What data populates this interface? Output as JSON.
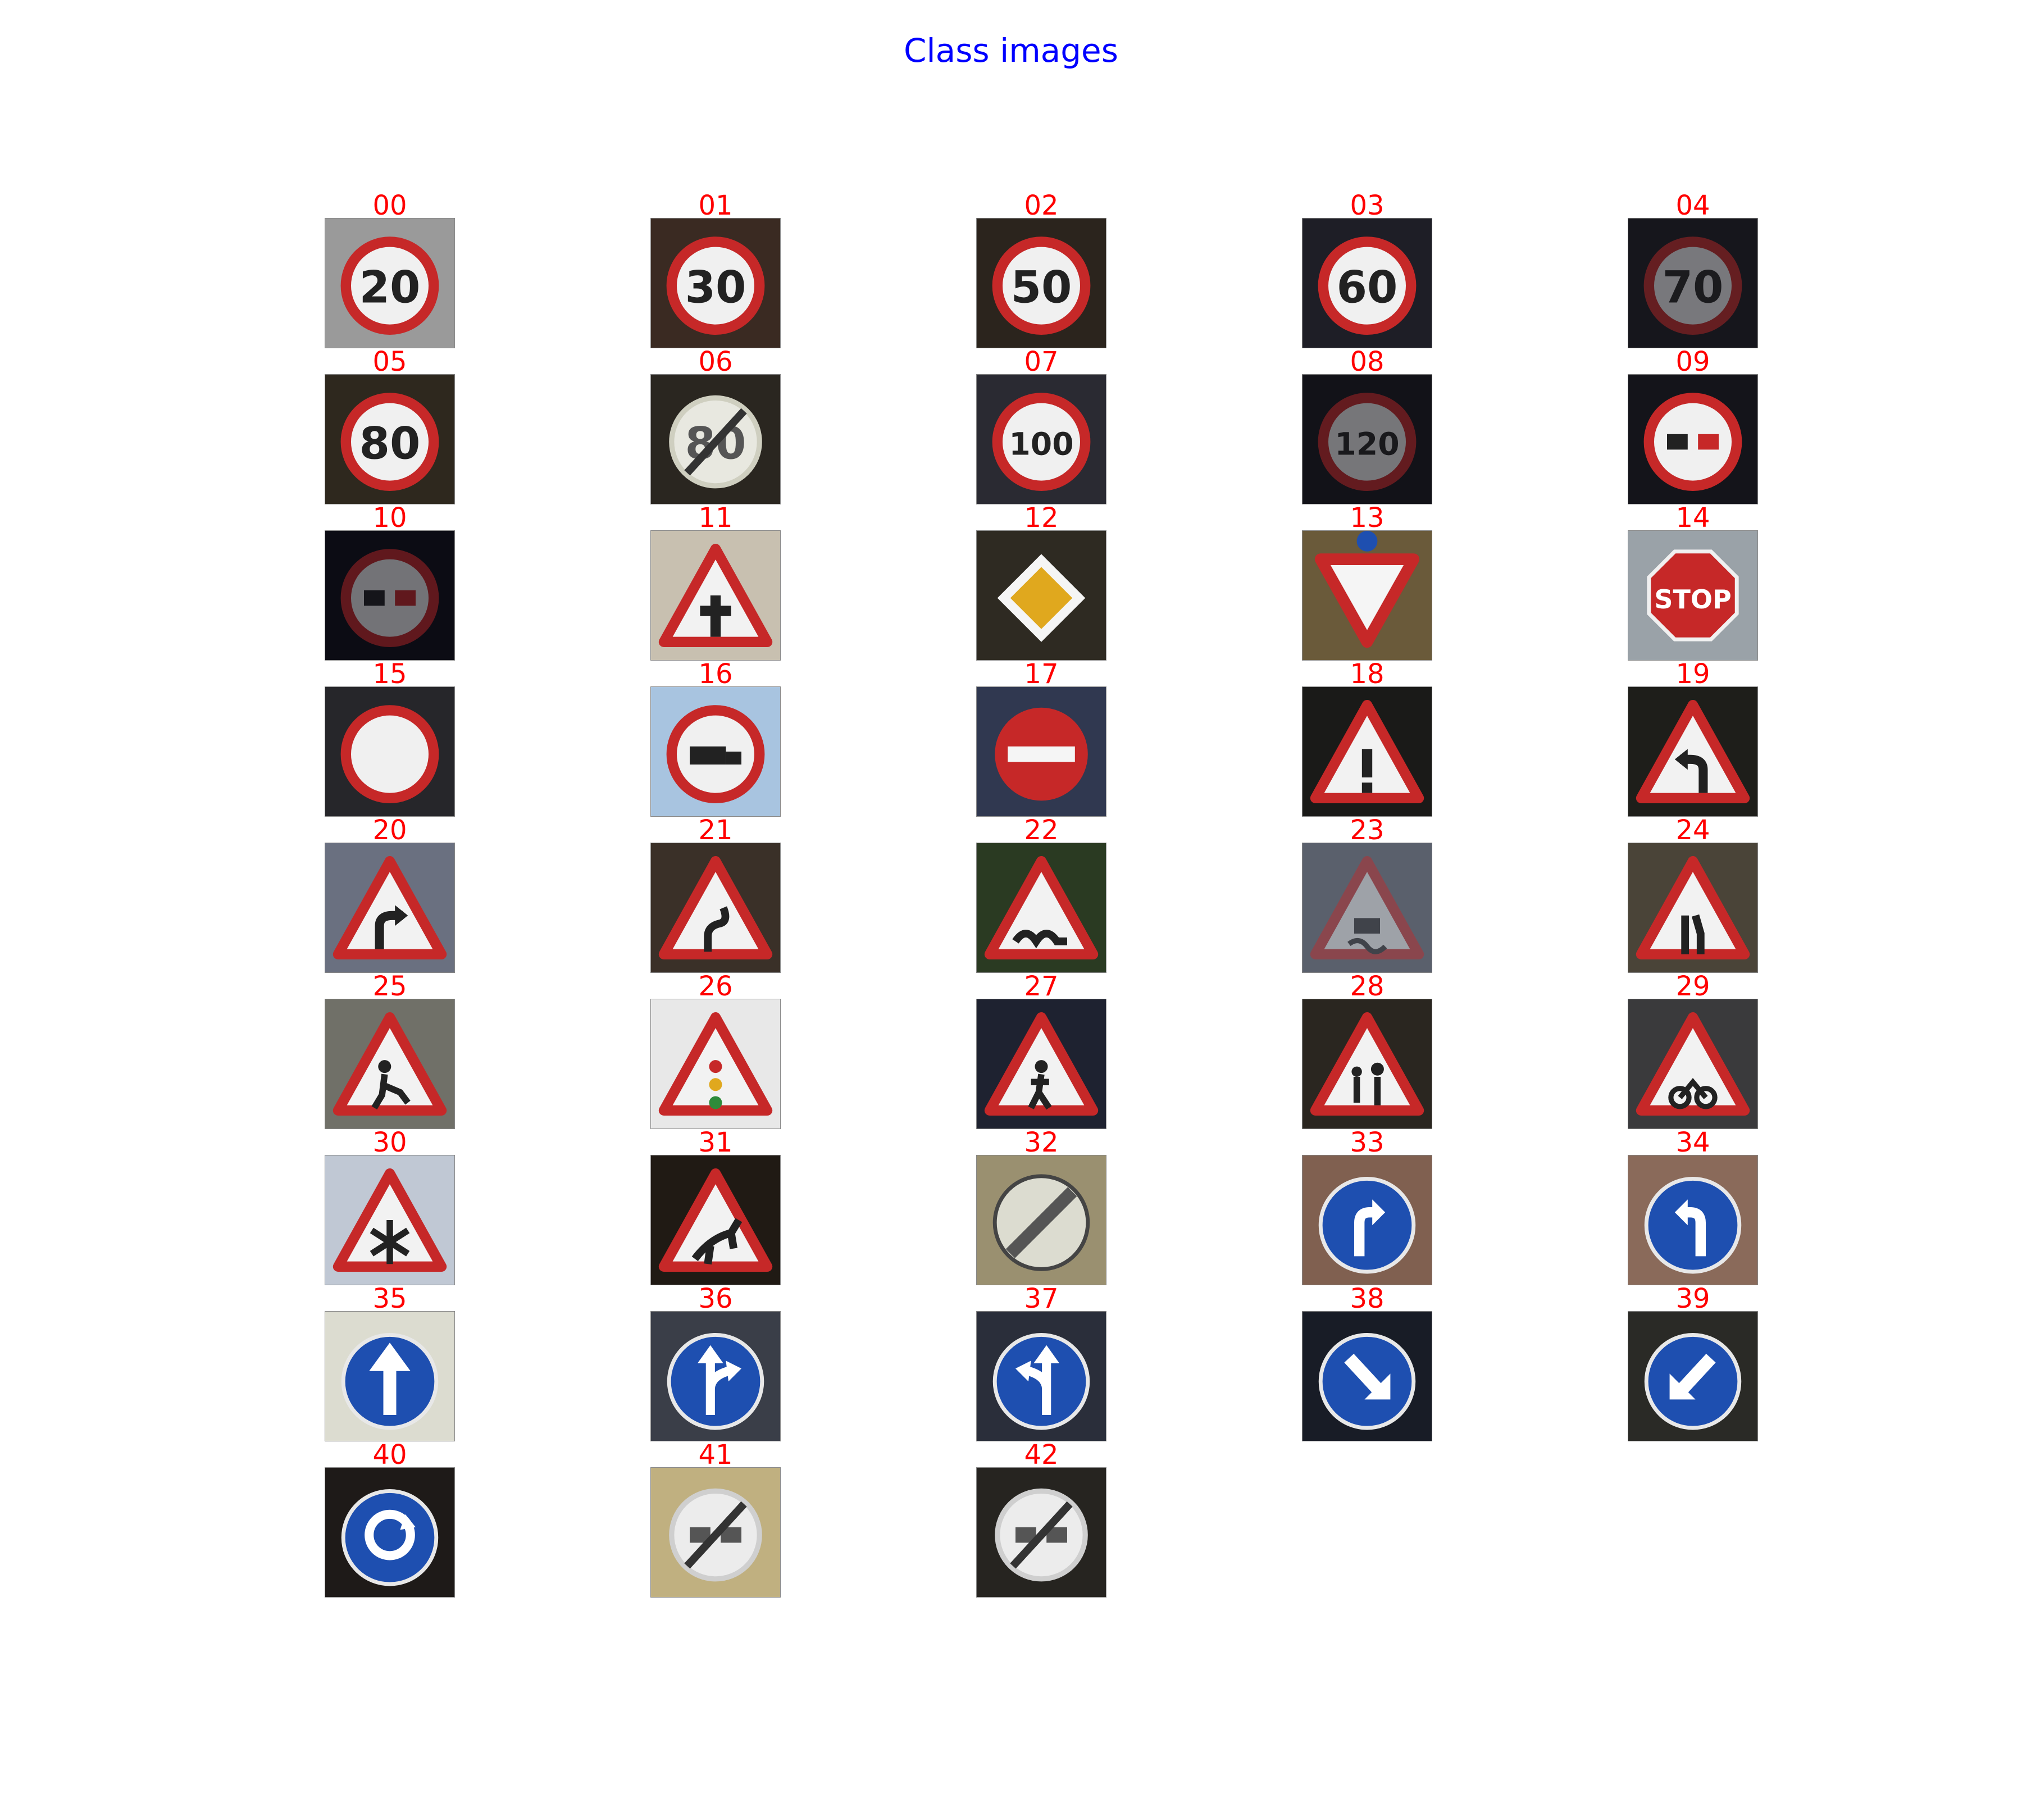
{
  "title": "Class images",
  "colors": {
    "title": "#0000ff",
    "label": "#ff0000",
    "sign_red": "#c62828",
    "sign_blue": "#1e4fb0",
    "sign_yellow": "#e0a81e"
  },
  "classes": [
    {
      "label": "00",
      "kind": "speed",
      "text": "20",
      "bg": "#9a9a9a"
    },
    {
      "label": "01",
      "kind": "speed",
      "text": "30",
      "bg": "#3a2a22"
    },
    {
      "label": "02",
      "kind": "speed",
      "text": "50",
      "bg": "#2b241d"
    },
    {
      "label": "03",
      "kind": "speed",
      "text": "60",
      "bg": "#1e1e26"
    },
    {
      "label": "04",
      "kind": "speed",
      "text": "70",
      "bg": "#16161c",
      "dark": true
    },
    {
      "label": "05",
      "kind": "speed",
      "text": "80",
      "bg": "#2e281e"
    },
    {
      "label": "06",
      "kind": "end-speed",
      "text": "80",
      "bg": "#2a2620"
    },
    {
      "label": "07",
      "kind": "speed",
      "text": "100",
      "bg": "#2a2a32"
    },
    {
      "label": "08",
      "kind": "speed",
      "text": "120",
      "bg": "#121218",
      "dark": true
    },
    {
      "label": "09",
      "kind": "no-passing",
      "bg": "#14141a"
    },
    {
      "label": "10",
      "kind": "no-passing-trucks",
      "bg": "#0c0c14",
      "dark": true
    },
    {
      "label": "11",
      "kind": "triangle",
      "symbol": "crossroad",
      "bg": "#c8c0b0"
    },
    {
      "label": "12",
      "kind": "priority-road",
      "bg": "#2e2a22"
    },
    {
      "label": "13",
      "kind": "yield",
      "bg": "#6a5a3a"
    },
    {
      "label": "14",
      "kind": "stop",
      "text": "STOP",
      "bg": "#9aa2a8"
    },
    {
      "label": "15",
      "kind": "no-vehicles",
      "bg": "#26262a"
    },
    {
      "label": "16",
      "kind": "no-trucks",
      "bg": "#a8c4e0"
    },
    {
      "label": "17",
      "kind": "no-entry",
      "bg": "#303850"
    },
    {
      "label": "18",
      "kind": "triangle",
      "symbol": "exclamation",
      "bg": "#1a1a18"
    },
    {
      "label": "19",
      "kind": "triangle",
      "symbol": "curve-left",
      "bg": "#1e1e1a"
    },
    {
      "label": "20",
      "kind": "triangle",
      "symbol": "curve-right",
      "bg": "#6a7080"
    },
    {
      "label": "21",
      "kind": "triangle",
      "symbol": "double-curve",
      "bg": "#3a3028"
    },
    {
      "label": "22",
      "kind": "triangle",
      "symbol": "bumpy",
      "bg": "#2a3a22"
    },
    {
      "label": "23",
      "kind": "triangle",
      "symbol": "slippery",
      "bg": "#5a606c",
      "dark": true
    },
    {
      "label": "24",
      "kind": "triangle",
      "symbol": "narrows",
      "bg": "#4a4438"
    },
    {
      "label": "25",
      "kind": "triangle",
      "symbol": "roadwork",
      "bg": "#707068"
    },
    {
      "label": "26",
      "kind": "triangle",
      "symbol": "signals",
      "bg": "#e8e8e8"
    },
    {
      "label": "27",
      "kind": "triangle",
      "symbol": "pedestrian",
      "bg": "#1e2230"
    },
    {
      "label": "28",
      "kind": "triangle",
      "symbol": "children",
      "bg": "#2a2620"
    },
    {
      "label": "29",
      "kind": "triangle",
      "symbol": "bicycle",
      "bg": "#3a3a3c"
    },
    {
      "label": "30",
      "kind": "triangle",
      "symbol": "snow",
      "bg": "#c0c8d4"
    },
    {
      "label": "31",
      "kind": "triangle",
      "symbol": "animal",
      "bg": "#201a14"
    },
    {
      "label": "32",
      "kind": "end-all",
      "bg": "#9a9070"
    },
    {
      "label": "33",
      "kind": "blue",
      "symbol": "turn-right",
      "bg": "#806050"
    },
    {
      "label": "34",
      "kind": "blue",
      "symbol": "turn-left",
      "bg": "#8a6a5a"
    },
    {
      "label": "35",
      "kind": "blue",
      "symbol": "ahead",
      "bg": "#dcdcd0"
    },
    {
      "label": "36",
      "kind": "blue",
      "symbol": "straight-right",
      "bg": "#3a3e48"
    },
    {
      "label": "37",
      "kind": "blue",
      "symbol": "straight-left",
      "bg": "#2a2e3a"
    },
    {
      "label": "38",
      "kind": "blue",
      "symbol": "keep-right",
      "bg": "#181c26"
    },
    {
      "label": "39",
      "kind": "blue",
      "symbol": "keep-left",
      "bg": "#2a2a26"
    },
    {
      "label": "40",
      "kind": "blue",
      "symbol": "roundabout",
      "bg": "#1e1a18"
    },
    {
      "label": "41",
      "kind": "end-no-passing",
      "bg": "#c0b080"
    },
    {
      "label": "42",
      "kind": "end-no-passing-trucks",
      "bg": "#262420"
    }
  ]
}
